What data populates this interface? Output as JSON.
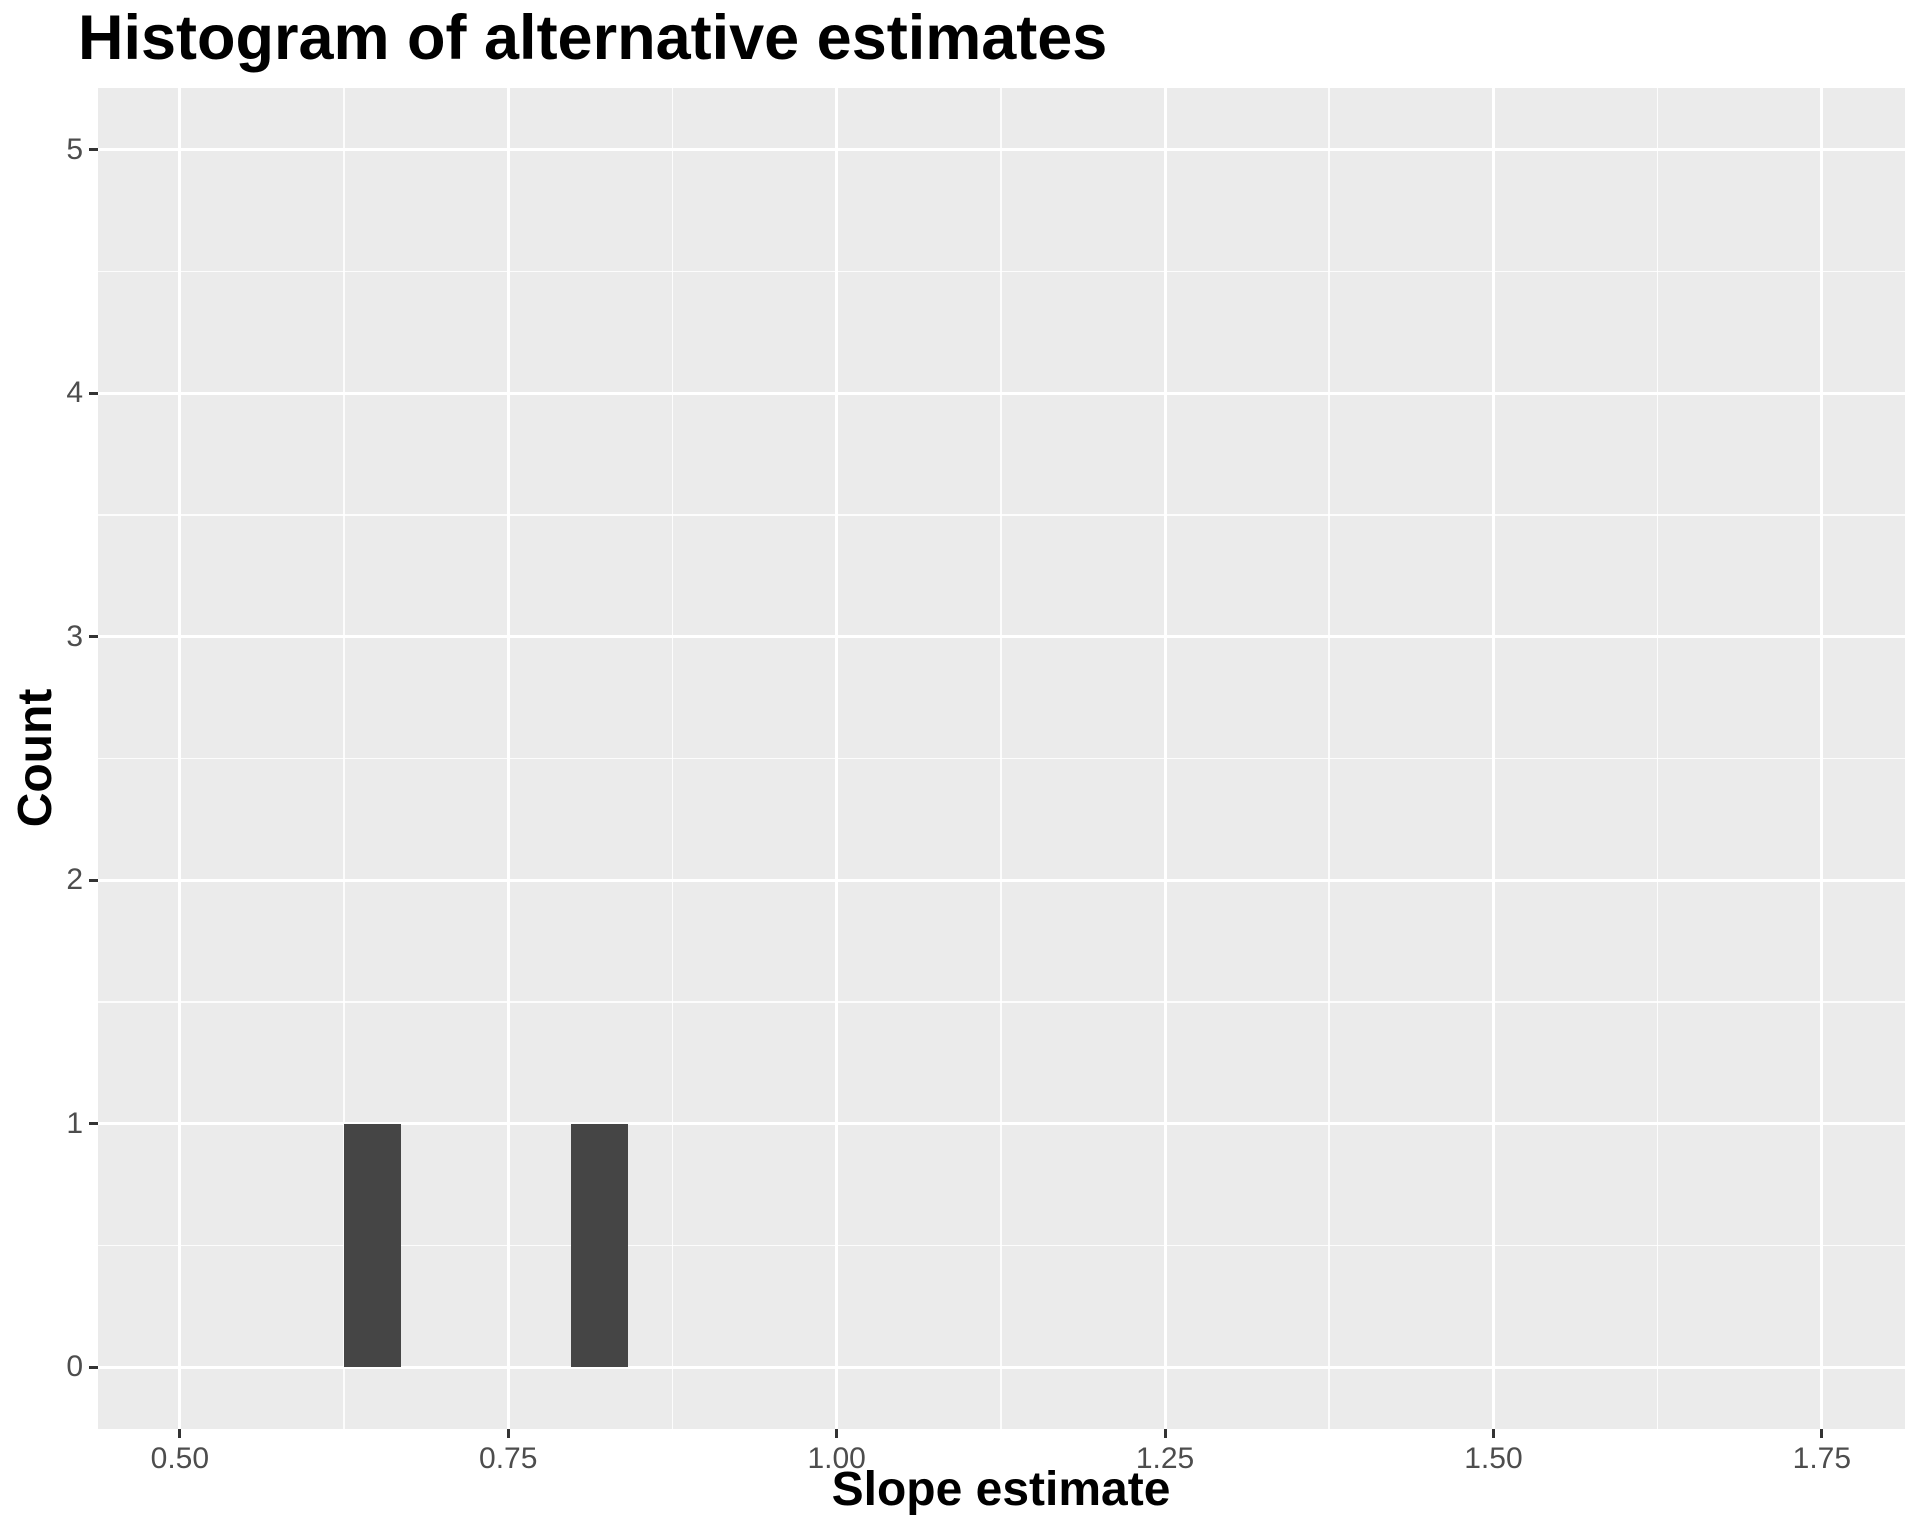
{
  "chart_data": {
    "type": "bar",
    "subtype": "histogram",
    "title": "Histogram of alternative estimates",
    "xlabel": "Slope estimate",
    "ylabel": "Count",
    "legend_position": "none",
    "grid": true,
    "x_domain": [
      0.4377,
      1.8133
    ],
    "y_domain": [
      -0.2546,
      5.2546
    ],
    "x_ticks": [
      {
        "value": 0.5,
        "label": "0.50"
      },
      {
        "value": 0.75,
        "label": "0.75"
      },
      {
        "value": 1.0,
        "label": "1.00"
      },
      {
        "value": 1.25,
        "label": "1.25"
      },
      {
        "value": 1.5,
        "label": "1.50"
      },
      {
        "value": 1.75,
        "label": "1.75"
      }
    ],
    "y_ticks": [
      {
        "value": 0,
        "label": "0"
      },
      {
        "value": 1,
        "label": "1"
      },
      {
        "value": 2,
        "label": "2"
      },
      {
        "value": 3,
        "label": "3"
      },
      {
        "value": 4,
        "label": "4"
      },
      {
        "value": 5,
        "label": "5"
      }
    ],
    "x_minor_ticks": [
      0.625,
      0.875,
      1.125,
      1.375,
      1.625
    ],
    "y_minor_ticks": [
      0.5,
      1.5,
      2.5,
      3.5,
      4.5
    ],
    "bins": [
      {
        "start": 0.625,
        "end": 0.668,
        "count": 1
      },
      {
        "start": 0.798,
        "end": 0.841,
        "count": 1
      }
    ],
    "estimates": [
      0.647,
      0.82
    ],
    "colors": {
      "background": "#FFFFFF",
      "panel": "#EBEBEB",
      "grid": "#FFFFFF",
      "bar": "#454545",
      "tick_text": "#4D4D4D",
      "tick_mark": "#333333",
      "title_text": "#000000"
    }
  }
}
